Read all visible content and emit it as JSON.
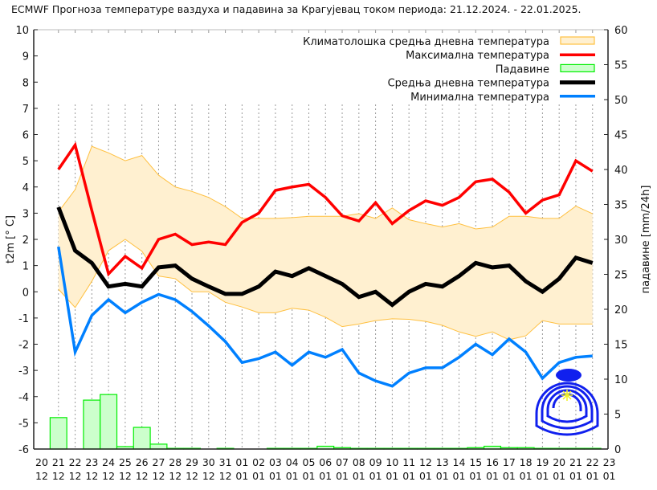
{
  "chart_data": {
    "type": "line",
    "title": "ECMWF Прогноза температуре ваздуха и падавина за Крагујевац током периода: 21.12.2024. - 22.01.2025.",
    "ylabel": "t2m [° C]",
    "y2label": "падавине [mm/24h]",
    "ylim": [
      -6,
      10
    ],
    "y2lim": [
      0,
      60
    ],
    "yticks": [
      -6,
      -5,
      -4,
      -3,
      -2,
      -1,
      0,
      1,
      2,
      3,
      4,
      5,
      6,
      7,
      8,
      9,
      10
    ],
    "y2ticks": [
      0,
      5,
      10,
      15,
      20,
      25,
      30,
      35,
      40,
      45,
      50,
      55,
      60
    ],
    "xtick_days": [
      "20",
      "21",
      "22",
      "23",
      "24",
      "25",
      "26",
      "27",
      "28",
      "29",
      "30",
      "31",
      "01",
      "02",
      "03",
      "04",
      "05",
      "06",
      "07",
      "08",
      "09",
      "10",
      "11",
      "12",
      "13",
      "14",
      "15",
      "16",
      "17",
      "18",
      "19",
      "20",
      "21",
      "22",
      "23"
    ],
    "xtick_months": [
      "12",
      "12",
      "12",
      "12",
      "12",
      "12",
      "12",
      "12",
      "12",
      "12",
      "12",
      "12",
      "01",
      "01",
      "01",
      "01",
      "01",
      "01",
      "01",
      "01",
      "01",
      "01",
      "01",
      "01",
      "01",
      "01",
      "01",
      "01",
      "01",
      "01",
      "01",
      "01",
      "01",
      "01",
      "01"
    ],
    "grid": "vertical dashed",
    "legend_position": "top-right",
    "x": [
      "21.12",
      "22.12",
      "23.12",
      "24.12",
      "25.12",
      "26.12",
      "27.12",
      "28.12",
      "29.12",
      "30.12",
      "31.12",
      "01.01",
      "02.01",
      "03.01",
      "04.01",
      "05.01",
      "06.01",
      "07.01",
      "08.01",
      "09.01",
      "10.01",
      "11.01",
      "12.01",
      "13.01",
      "14.01",
      "15.01",
      "16.01",
      "17.01",
      "18.01",
      "19.01",
      "20.01",
      "21.01",
      "22.01"
    ],
    "climate_band": {
      "name": "Климатолошка средња дневна температура",
      "color": "#ffc040",
      "fill": "#fff0d0",
      "upper": [
        3.05,
        3.9,
        5.55,
        5.3,
        5.0,
        5.2,
        4.45,
        4.0,
        3.83,
        3.6,
        3.25,
        2.8,
        2.8,
        2.8,
        2.83,
        2.88,
        2.88,
        2.88,
        2.98,
        2.8,
        3.2,
        2.75,
        2.6,
        2.47,
        2.6,
        2.4,
        2.47,
        2.88,
        2.88,
        2.8,
        2.8,
        3.27,
        2.98
      ],
      "lower": [
        0.1,
        -0.6,
        0.4,
        1.57,
        2.0,
        1.55,
        0.6,
        0.5,
        0.0,
        0.0,
        -0.4,
        -0.58,
        -0.8,
        -0.8,
        -0.63,
        -0.7,
        -0.97,
        -1.33,
        -1.23,
        -1.1,
        -1.03,
        -1.05,
        -1.13,
        -1.28,
        -1.53,
        -1.7,
        -1.53,
        -1.83,
        -1.68,
        -1.1,
        -1.23,
        -1.23,
        -1.23
      ]
    },
    "series": [
      {
        "name": "Максимална температура",
        "color": "#ff0000",
        "width": 3.5,
        "values": [
          4.67,
          5.6,
          3.1,
          0.68,
          1.35,
          0.9,
          2.0,
          2.2,
          1.8,
          1.9,
          1.8,
          2.65,
          3.0,
          3.87,
          4.0,
          4.1,
          3.6,
          2.9,
          2.7,
          3.4,
          2.6,
          3.1,
          3.47,
          3.3,
          3.6,
          4.2,
          4.3,
          3.8,
          3.0,
          3.5,
          3.7,
          5.0,
          4.6
        ]
      },
      {
        "name": "Средња дневна температура",
        "color": "#000000",
        "width": 5,
        "values": [
          3.23,
          1.57,
          1.1,
          0.2,
          0.3,
          0.2,
          0.93,
          1.0,
          0.5,
          0.2,
          -0.08,
          -0.08,
          0.2,
          0.77,
          0.6,
          0.9,
          0.6,
          0.3,
          -0.2,
          0.0,
          -0.5,
          0.0,
          0.3,
          0.2,
          0.6,
          1.1,
          0.93,
          1.0,
          0.4,
          0.0,
          0.5,
          1.3,
          1.1
        ]
      },
      {
        "name": "Минимална температура",
        "color": "#0080ff",
        "width": 3.5,
        "values": [
          1.72,
          -2.3,
          -0.9,
          -0.3,
          -0.8,
          -0.4,
          -0.1,
          -0.3,
          -0.75,
          -1.3,
          -1.9,
          -2.7,
          -2.55,
          -2.3,
          -2.8,
          -2.3,
          -2.5,
          -2.2,
          -3.1,
          -3.4,
          -3.6,
          -3.1,
          -2.9,
          -2.9,
          -2.5,
          -2.0,
          -2.4,
          -1.8,
          -2.3,
          -3.3,
          -2.7,
          -2.5,
          -2.45
        ]
      }
    ],
    "precipitation": {
      "name": "Падавине",
      "type": "bar",
      "axis": "right",
      "color": "#00ee00",
      "fill": "#ccffcc",
      "values": [
        4.5,
        0,
        7.0,
        7.8,
        0.35,
        3.1,
        0.7,
        0.1,
        0.1,
        0,
        0.1,
        0,
        0,
        0.1,
        0.1,
        0.1,
        0.4,
        0.2,
        0.1,
        0.1,
        0.1,
        0.1,
        0.1,
        0.1,
        0.1,
        0.2,
        0.4,
        0.2,
        0.2,
        0.1,
        0.1,
        0.1,
        0.1
      ]
    }
  }
}
